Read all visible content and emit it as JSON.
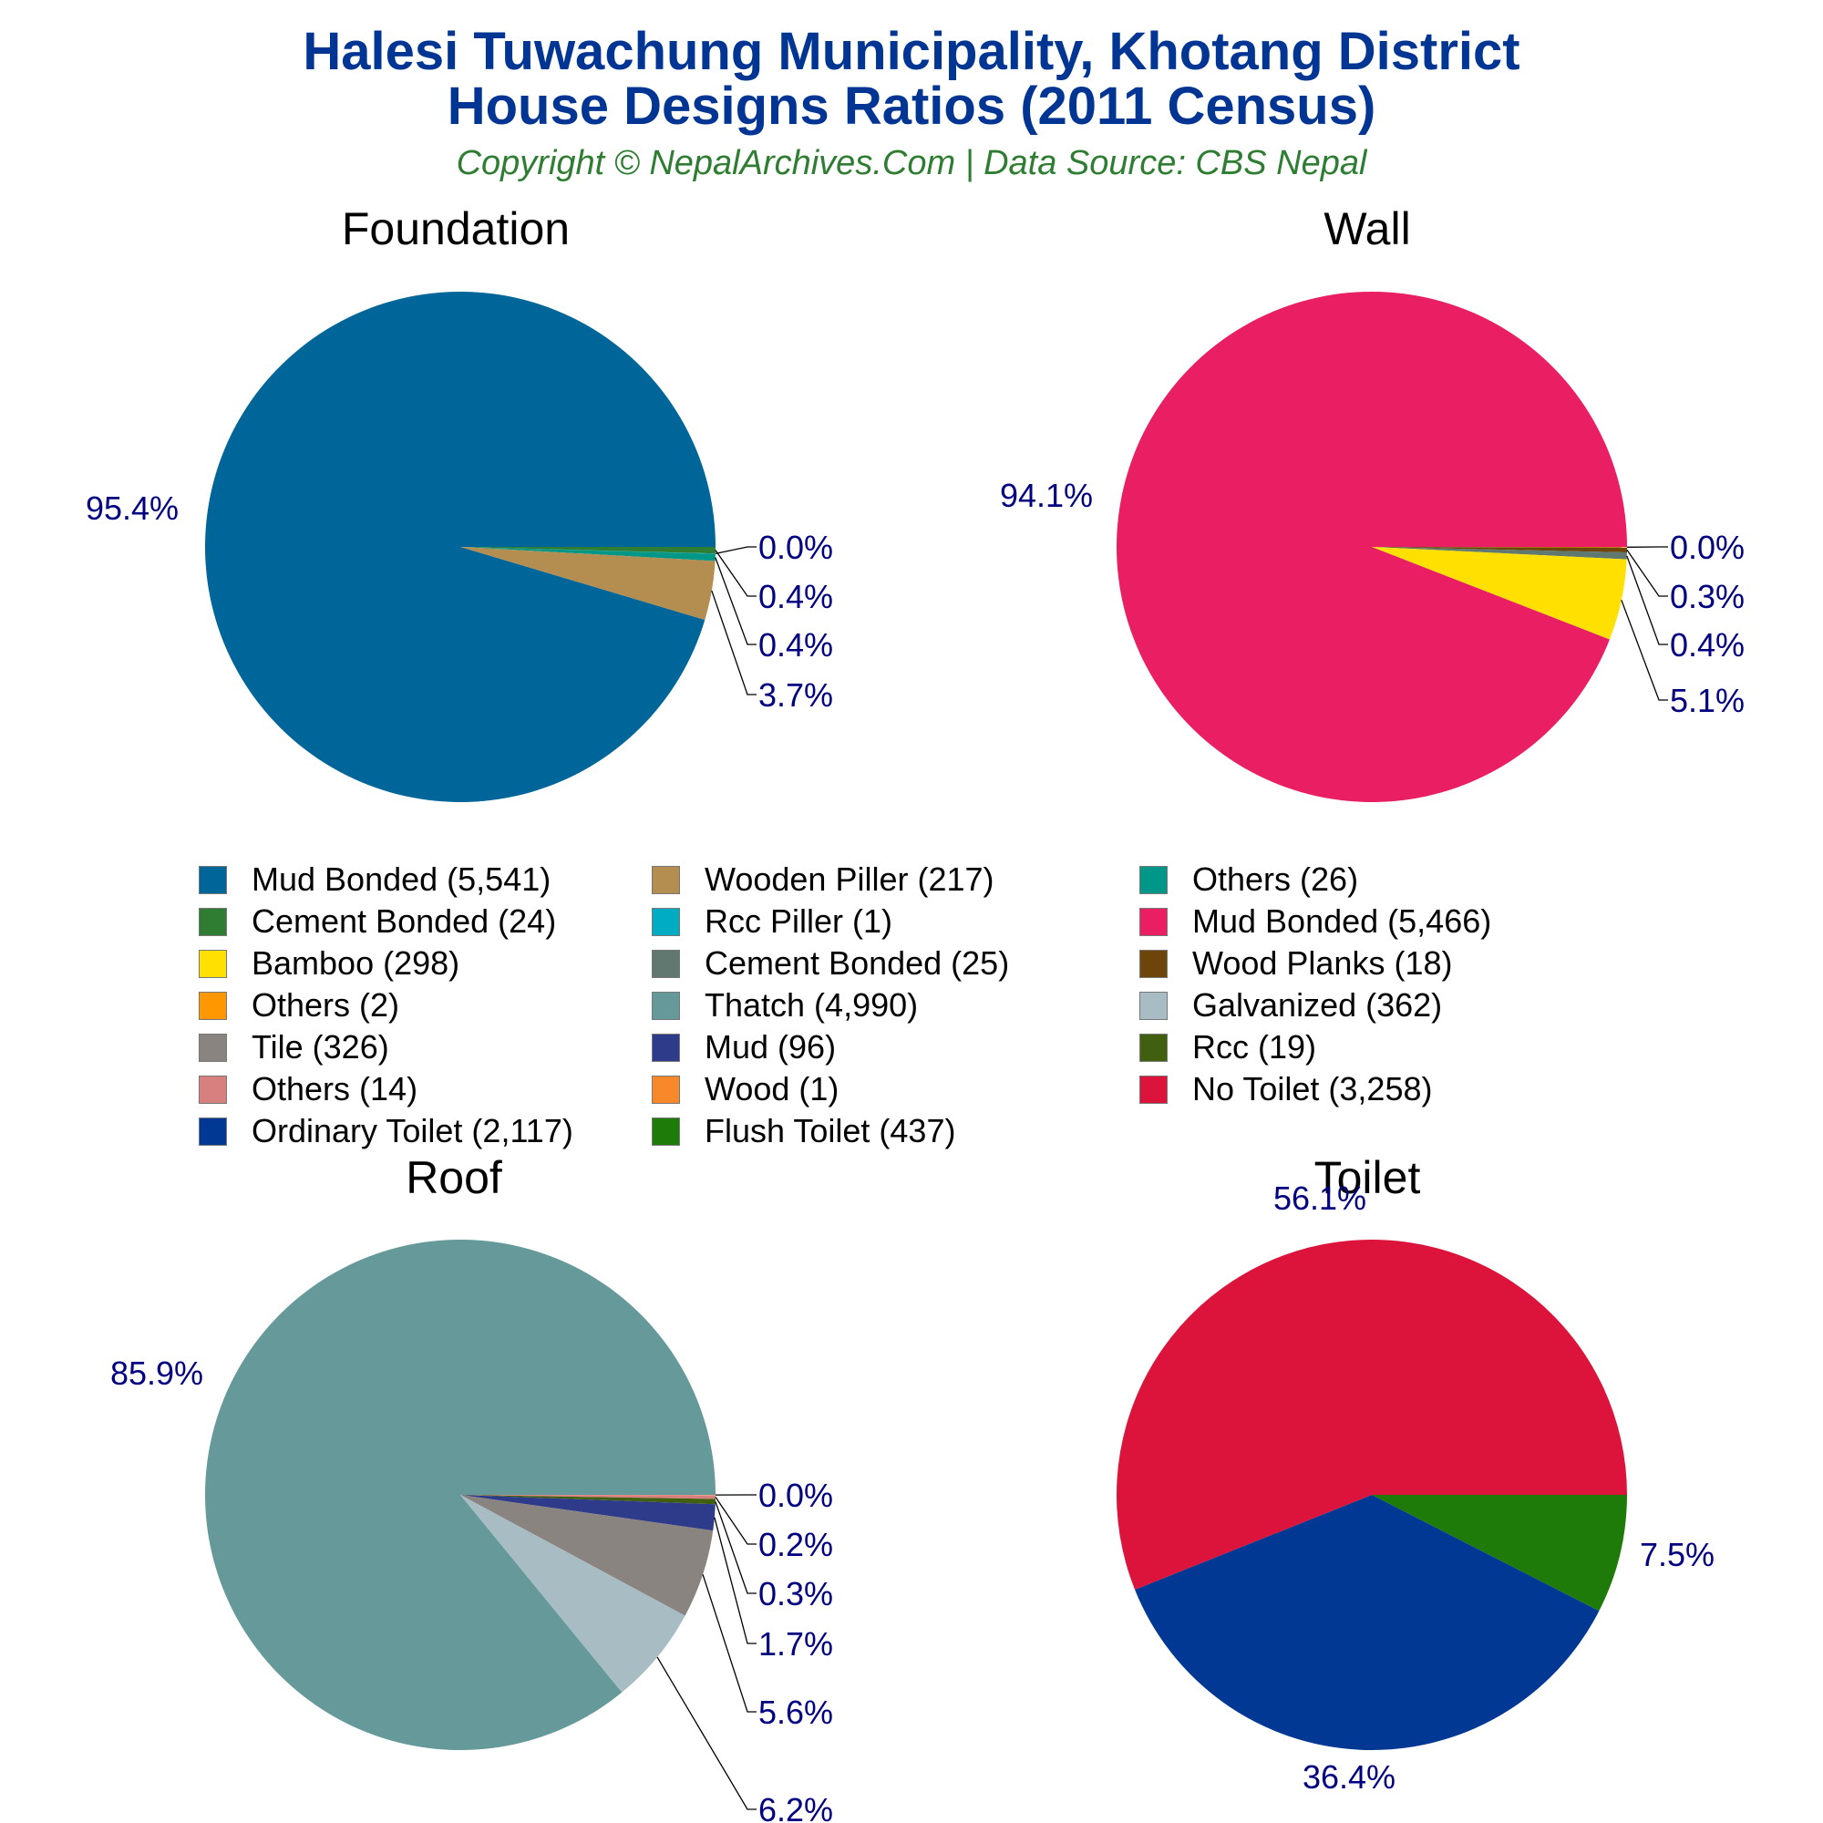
{
  "header": {
    "title_line1": "Halesi Tuwachung Municipality, Khotang District",
    "title_line2": "House Designs Ratios (2011 Census)",
    "subtitle": "Copyright © NepalArchives.Com | Data Source: CBS Nepal"
  },
  "colors": {
    "title": "#003594",
    "subtitle": "#2e7d32",
    "pct_label": "#000080"
  },
  "pies": [
    {
      "title": "Foundation",
      "slices": [
        {
          "label": "Mud Bonded",
          "value": 5541,
          "pct": "95.4%",
          "color": "#006699"
        },
        {
          "label": "Cement Bonded",
          "value": 24,
          "pct": "0.4%",
          "color": "#2e7d32"
        },
        {
          "label": "Rcc Piller",
          "value": 1,
          "pct": "0.0%",
          "color": "#00acc1"
        },
        {
          "label": "Others",
          "value": 26,
          "pct": "0.4%",
          "color": "#009688"
        },
        {
          "label": "Wooden Piller",
          "value": 217,
          "pct": "3.7%",
          "color": "#b38e50"
        }
      ]
    },
    {
      "title": "Wall",
      "slices": [
        {
          "label": "Mud Bonded",
          "value": 5466,
          "pct": "94.1%",
          "color": "#e91e63"
        },
        {
          "label": "Others",
          "value": 2,
          "pct": "0.0%",
          "color": "#ff9800"
        },
        {
          "label": "Wood Planks",
          "value": 18,
          "pct": "0.3%",
          "color": "#6d4409"
        },
        {
          "label": "Cement Bonded",
          "value": 25,
          "pct": "0.4%",
          "color": "#607870"
        },
        {
          "label": "Bamboo",
          "value": 298,
          "pct": "5.1%",
          "color": "#ffe000"
        }
      ]
    },
    {
      "title": "Roof",
      "slices": [
        {
          "label": "Thatch",
          "value": 4990,
          "pct": "85.9%",
          "color": "#669999"
        },
        {
          "label": "Wood",
          "value": 1,
          "pct": "0.0%",
          "color": "#f8892a"
        },
        {
          "label": "Others",
          "value": 14,
          "pct": "0.2%",
          "color": "#d88080"
        },
        {
          "label": "Rcc",
          "value": 19,
          "pct": "0.3%",
          "color": "#406010"
        },
        {
          "label": "Mud",
          "value": 96,
          "pct": "1.7%",
          "color": "#2e3a8a"
        },
        {
          "label": "Tile",
          "value": 326,
          "pct": "5.6%",
          "color": "#8a8480"
        },
        {
          "label": "Galvanized",
          "value": 362,
          "pct": "6.2%",
          "color": "#a8bcc4"
        }
      ]
    },
    {
      "title": "Toilet",
      "slices": [
        {
          "label": "No Toilet",
          "value": 3258,
          "pct": "56.1%",
          "color": "#dc143c"
        },
        {
          "label": "Ordinary Toilet",
          "value": 2117,
          "pct": "36.4%",
          "color": "#003893"
        },
        {
          "label": "Flush Toilet",
          "value": 437,
          "pct": "7.5%",
          "color": "#1e7b0a"
        }
      ]
    }
  ],
  "legend": {
    "columns": [
      [
        {
          "label": "Mud Bonded (5,541)",
          "color": "#006699"
        },
        {
          "label": "Cement Bonded (24)",
          "color": "#2e7d32"
        },
        {
          "label": "Bamboo (298)",
          "color": "#ffe000"
        },
        {
          "label": "Others (2)",
          "color": "#ff9800"
        },
        {
          "label": "Tile (326)",
          "color": "#8a8480"
        },
        {
          "label": "Others (14)",
          "color": "#d88080"
        },
        {
          "label": "Ordinary Toilet (2,117)",
          "color": "#003893"
        }
      ],
      [
        {
          "label": "Wooden Piller (217)",
          "color": "#b38e50"
        },
        {
          "label": "Rcc Piller (1)",
          "color": "#00acc1"
        },
        {
          "label": "Cement Bonded (25)",
          "color": "#607870"
        },
        {
          "label": "Thatch (4,990)",
          "color": "#669999"
        },
        {
          "label": "Mud (96)",
          "color": "#2e3a8a"
        },
        {
          "label": "Wood (1)",
          "color": "#f8892a"
        },
        {
          "label": "Flush Toilet (437)",
          "color": "#1e7b0a"
        }
      ],
      [
        {
          "label": "Others (26)",
          "color": "#009688"
        },
        {
          "label": "Mud Bonded (5,466)",
          "color": "#e91e63"
        },
        {
          "label": "Wood Planks (18)",
          "color": "#6d4409"
        },
        {
          "label": "Galvanized (362)",
          "color": "#a8bcc4"
        },
        {
          "label": "Rcc (19)",
          "color": "#406010"
        },
        {
          "label": "No Toilet (3,258)",
          "color": "#dc143c"
        }
      ]
    ]
  },
  "chart_data": [
    {
      "type": "pie",
      "title": "Foundation",
      "categories": [
        "Mud Bonded",
        "Cement Bonded",
        "Rcc Piller",
        "Others",
        "Wooden Piller"
      ],
      "values": [
        5541,
        24,
        1,
        26,
        217
      ],
      "labels": [
        "95.4%",
        "0.4%",
        "0.0%",
        "0.4%",
        "3.7%"
      ]
    },
    {
      "type": "pie",
      "title": "Wall",
      "categories": [
        "Mud Bonded",
        "Others",
        "Wood Planks",
        "Cement Bonded",
        "Bamboo"
      ],
      "values": [
        5466,
        2,
        18,
        25,
        298
      ],
      "labels": [
        "94.1%",
        "0.0%",
        "0.3%",
        "0.4%",
        "5.1%"
      ]
    },
    {
      "type": "pie",
      "title": "Roof",
      "categories": [
        "Thatch",
        "Wood",
        "Others",
        "Rcc",
        "Mud",
        "Tile",
        "Galvanized"
      ],
      "values": [
        4990,
        1,
        14,
        19,
        96,
        326,
        362
      ],
      "labels": [
        "85.9%",
        "0.0%",
        "0.2%",
        "0.3%",
        "1.7%",
        "5.6%",
        "6.2%"
      ]
    },
    {
      "type": "pie",
      "title": "Toilet",
      "categories": [
        "No Toilet",
        "Ordinary Toilet",
        "Flush Toilet"
      ],
      "values": [
        3258,
        2117,
        437
      ],
      "labels": [
        "56.1%",
        "36.4%",
        "7.5%"
      ]
    }
  ]
}
